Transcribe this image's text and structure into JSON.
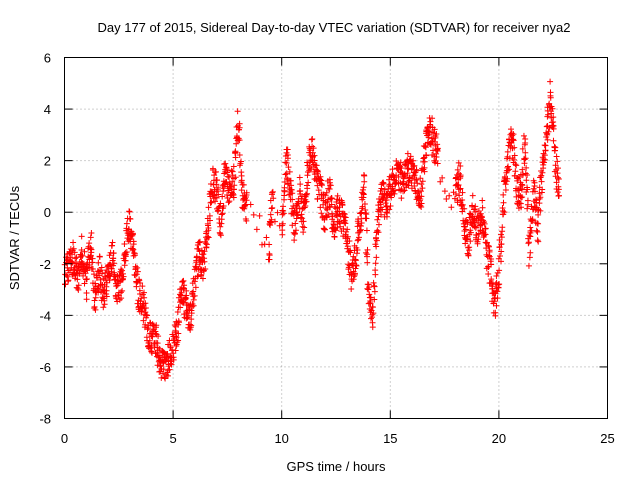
{
  "chart_data": {
    "type": "scatter",
    "title": "Day 177 of 2015, Sidereal Day-to-day VTEC variation (SDTVAR) for receiver nya2",
    "xlabel": "GPS time / hours",
    "ylabel": "SDTVAR / TECUs",
    "xlim": [
      0,
      25
    ],
    "ylim": [
      -8,
      6
    ],
    "xticks": [
      0,
      5,
      10,
      15,
      20,
      25
    ],
    "yticks": [
      -8,
      -6,
      -4,
      -2,
      0,
      2,
      4,
      6
    ],
    "grid": true,
    "marker": "+",
    "color": "#ff0000",
    "series": [
      {
        "name": "SDTVAR",
        "trace": [
          [
            0.0,
            -2.4
          ],
          [
            0.2,
            -2.1
          ],
          [
            0.4,
            -1.8
          ],
          [
            0.6,
            -2.6
          ],
          [
            0.8,
            -1.5
          ],
          [
            1.0,
            -2.8
          ],
          [
            1.2,
            -1.1
          ],
          [
            1.4,
            -3.4
          ],
          [
            1.6,
            -2.2
          ],
          [
            1.8,
            -3.2
          ],
          [
            2.0,
            -2.5
          ],
          [
            2.2,
            -1.6
          ],
          [
            2.4,
            -3.1
          ],
          [
            2.6,
            -2.8
          ],
          [
            2.8,
            -1.4
          ],
          [
            3.0,
            -0.4
          ],
          [
            3.2,
            -1.6
          ],
          [
            3.4,
            -3.2
          ],
          [
            3.6,
            -3.5
          ],
          [
            3.8,
            -4.5
          ],
          [
            4.0,
            -5.0
          ],
          [
            4.2,
            -4.8
          ],
          [
            4.4,
            -5.8
          ],
          [
            4.6,
            -6.0
          ],
          [
            4.8,
            -5.6
          ],
          [
            5.0,
            -5.2
          ],
          [
            5.2,
            -4.5
          ],
          [
            5.4,
            -3.0
          ],
          [
            5.6,
            -3.7
          ],
          [
            5.8,
            -4.2
          ],
          [
            6.0,
            -2.8
          ],
          [
            6.2,
            -1.5
          ],
          [
            6.4,
            -2.2
          ],
          [
            6.6,
            -0.5
          ],
          [
            6.8,
            1.2
          ],
          [
            7.0,
            0.9
          ],
          [
            7.2,
            -0.4
          ],
          [
            7.4,
            1.6
          ],
          [
            7.6,
            0.9
          ],
          [
            7.8,
            1.2
          ],
          [
            8.0,
            3.6
          ],
          [
            8.2,
            0.6
          ],
          [
            8.4,
            0.2
          ],
          [
            9.0,
            -0.6
          ],
          [
            9.4,
            -1.3
          ],
          [
            9.6,
            0.6
          ],
          [
            10.0,
            -0.8
          ],
          [
            10.2,
            2.2
          ],
          [
            10.4,
            0.7
          ],
          [
            10.6,
            -0.6
          ],
          [
            10.8,
            0.8
          ],
          [
            11.0,
            -0.2
          ],
          [
            11.2,
            1.4
          ],
          [
            11.4,
            2.5
          ],
          [
            11.6,
            1.2
          ],
          [
            11.8,
            0.7
          ],
          [
            12.0,
            -0.2
          ],
          [
            12.2,
            0.9
          ],
          [
            12.4,
            -0.6
          ],
          [
            12.6,
            0.2
          ],
          [
            12.8,
            -0.3
          ],
          [
            13.0,
            -1.0
          ],
          [
            13.2,
            -2.4
          ],
          [
            13.4,
            -1.8
          ],
          [
            13.6,
            -0.4
          ],
          [
            13.8,
            1.2
          ],
          [
            14.0,
            -3.2
          ],
          [
            14.2,
            -3.9
          ],
          [
            14.4,
            -0.6
          ],
          [
            14.6,
            0.7
          ],
          [
            14.8,
            0.3
          ],
          [
            15.0,
            0.8
          ],
          [
            15.2,
            1.3
          ],
          [
            15.4,
            1.5
          ],
          [
            15.6,
            1.0
          ],
          [
            15.8,
            1.7
          ],
          [
            16.0,
            1.5
          ],
          [
            16.2,
            1.1
          ],
          [
            16.4,
            0.6
          ],
          [
            16.6,
            2.3
          ],
          [
            16.8,
            3.3
          ],
          [
            17.0,
            2.7
          ],
          [
            17.2,
            2.2
          ],
          [
            17.6,
            0.4
          ],
          [
            18.0,
            0.6
          ],
          [
            18.2,
            1.4
          ],
          [
            18.4,
            -0.6
          ],
          [
            18.6,
            -1.1
          ],
          [
            18.8,
            0.3
          ],
          [
            19.0,
            -0.8
          ],
          [
            19.2,
            0.1
          ],
          [
            19.4,
            -1.4
          ],
          [
            19.6,
            -2.2
          ],
          [
            19.8,
            -3.6
          ],
          [
            20.0,
            -2.4
          ],
          [
            20.2,
            0.4
          ],
          [
            20.4,
            1.8
          ],
          [
            20.6,
            3.2
          ],
          [
            20.8,
            1.1
          ],
          [
            21.0,
            0.6
          ],
          [
            21.2,
            2.8
          ],
          [
            21.4,
            -1.5
          ],
          [
            21.6,
            0.9
          ],
          [
            21.8,
            -0.7
          ],
          [
            22.0,
            1.6
          ],
          [
            22.2,
            3.1
          ],
          [
            22.4,
            4.6
          ],
          [
            22.6,
            2.0
          ],
          [
            22.8,
            0.8
          ]
        ]
      }
    ]
  }
}
